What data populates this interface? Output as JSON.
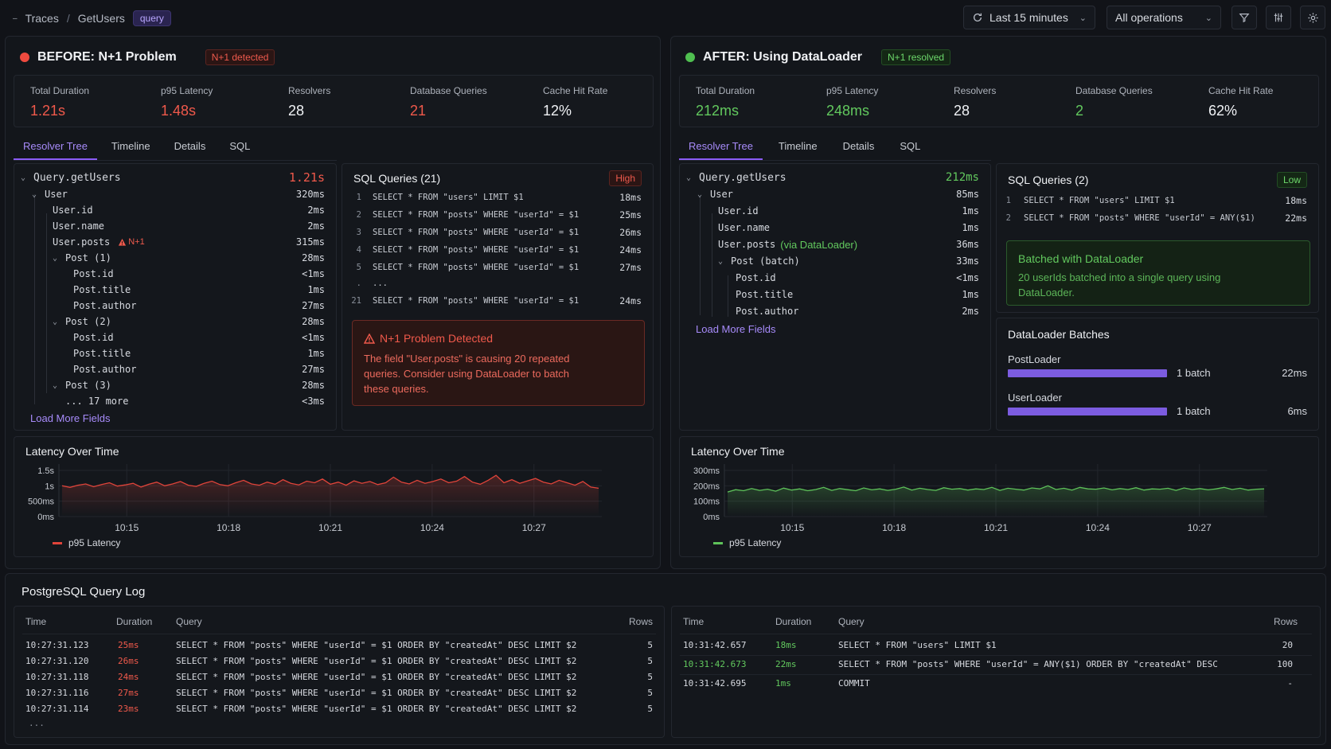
{
  "breadcrumb": {
    "root": "Traces",
    "sep": "/",
    "current": "GetUsers",
    "type_tag": "query"
  },
  "toolbar": {
    "time_range": "Last 15 minutes",
    "operations": "All operations"
  },
  "before": {
    "title": "BEFORE: N+1 Problem",
    "badge": "N+1 detected",
    "metrics": [
      {
        "label": "Total Duration",
        "value": "1.21s"
      },
      {
        "label": "p95 Latency",
        "value": "1.48s"
      },
      {
        "label": "Resolvers",
        "value": "28"
      },
      {
        "label": "Database Queries",
        "value": "21"
      },
      {
        "label": "Cache Hit Rate",
        "value": "12%"
      }
    ],
    "tabs": [
      "Resolver Tree",
      "Timeline",
      "Details",
      "SQL"
    ],
    "tree": [
      {
        "name": "Query.getUsers",
        "time": "1.21s"
      },
      {
        "name": "User",
        "time": "320ms"
      },
      {
        "name": "User.id",
        "time": "2ms"
      },
      {
        "name": "User.name",
        "time": "2ms"
      },
      {
        "name": "User.posts",
        "time": "315ms",
        "tag": "N+1"
      },
      {
        "name": "Post (1)",
        "time": "28ms"
      },
      {
        "name": "Post.id",
        "time": "<1ms"
      },
      {
        "name": "Post.title",
        "time": "1ms"
      },
      {
        "name": "Post.author",
        "time": "27ms"
      },
      {
        "name": "Post (2)",
        "time": "28ms"
      },
      {
        "name": "Post.id",
        "time": "<1ms"
      },
      {
        "name": "Post.title",
        "time": "1ms"
      },
      {
        "name": "Post.author",
        "time": "27ms"
      },
      {
        "name": "Post (3)",
        "time": "28ms"
      },
      {
        "name": "... 17 more",
        "time": "<3ms"
      }
    ],
    "load_more": "Load More Fields",
    "sql_title": "SQL Queries (21)",
    "sql_level": "High",
    "sql": [
      {
        "n": "1",
        "q": "SELECT * FROM \"users\" LIMIT $1",
        "d": "18ms"
      },
      {
        "n": "2",
        "q": "SELECT * FROM \"posts\" WHERE \"userId\" = $1",
        "d": "25ms"
      },
      {
        "n": "3",
        "q": "SELECT * FROM \"posts\" WHERE \"userId\" = $1",
        "d": "26ms"
      },
      {
        "n": "4",
        "q": "SELECT * FROM \"posts\" WHERE \"userId\" = $1",
        "d": "24ms"
      },
      {
        "n": "5",
        "q": "SELECT * FROM \"posts\" WHERE \"userId\" = $1",
        "d": "27ms"
      },
      {
        "n": ".",
        "q": "...",
        "d": ""
      },
      {
        "n": "21",
        "q": "SELECT * FROM \"posts\" WHERE \"userId\" = $1",
        "d": "24ms"
      }
    ],
    "alert_title": "N+1 Problem Detected",
    "alert_lines": [
      "The field \"User.posts\" is causing 20 repeated",
      "queries. Consider using DataLoader to batch",
      "these queries."
    ],
    "chart_title": "Latency Over Time",
    "legend": "p95 Latency"
  },
  "after": {
    "title": "AFTER: Using DataLoader",
    "badge": "N+1 resolved",
    "metrics": [
      {
        "label": "Total Duration",
        "value": "212ms"
      },
      {
        "label": "p95 Latency",
        "value": "248ms"
      },
      {
        "label": "Resolvers",
        "value": "28"
      },
      {
        "label": "Database Queries",
        "value": "2"
      },
      {
        "label": "Cache Hit Rate",
        "value": "62%"
      }
    ],
    "tabs": [
      "Resolver Tree",
      "Timeline",
      "Details",
      "SQL"
    ],
    "tree": [
      {
        "name": "Query.getUsers",
        "time": "212ms"
      },
      {
        "name": "User",
        "time": "85ms"
      },
      {
        "name": "User.id",
        "time": "1ms"
      },
      {
        "name": "User.name",
        "time": "1ms"
      },
      {
        "name": "User.posts",
        "time": "36ms",
        "tag": "(via DataLoader)"
      },
      {
        "name": "Post (batch)",
        "time": "33ms"
      },
      {
        "name": "Post.id",
        "time": "<1ms"
      },
      {
        "name": "Post.title",
        "time": "1ms"
      },
      {
        "name": "Post.author",
        "time": "2ms"
      }
    ],
    "load_more": "Load More Fields",
    "sql_title": "SQL Queries (2)",
    "sql_level": "Low",
    "sql": [
      {
        "n": "1",
        "q": "SELECT * FROM \"users\" LIMIT $1",
        "d": "18ms"
      },
      {
        "n": "2",
        "q": "SELECT * FROM \"posts\" WHERE \"userId\" = ANY($1)",
        "d": "22ms"
      }
    ],
    "alert_title": "Batched with DataLoader",
    "alert_lines": [
      "20 userIds batched into a single query using",
      "DataLoader."
    ],
    "batches_title": "DataLoader Batches",
    "batches": [
      {
        "name": "PostLoader",
        "label": "1 batch",
        "time": "22ms",
        "fill": 1.0
      },
      {
        "name": "UserLoader",
        "label": "1 batch",
        "time": "6ms",
        "fill": 1.0
      }
    ],
    "chart_title": "Latency Over Time",
    "legend": "p95 Latency"
  },
  "chart_data": [
    {
      "type": "line",
      "title": "Latency Over Time",
      "xlabel": "",
      "ylabel": "",
      "x_ticks": [
        "10:15",
        "10:18",
        "10:21",
        "10:24",
        "10:27"
      ],
      "y_ticks": [
        "0ms",
        "500ms",
        "1s",
        "1.5s"
      ],
      "ylim": [
        0,
        1.5
      ],
      "y_unit": "s",
      "x_range": [
        "10:13",
        "10:29"
      ],
      "series": [
        {
          "name": "p95 Latency",
          "color": "#e0443a",
          "values": [
            1.0,
            0.95,
            1.02,
            1.06,
            0.97,
            1.04,
            1.1,
            0.99,
            1.03,
            1.08,
            0.96,
            1.05,
            1.12,
            1.0,
            1.06,
            1.14,
            1.02,
            0.98,
            1.08,
            1.15,
            1.04,
            1.0,
            1.1,
            1.18,
            1.06,
            1.02,
            1.12,
            1.05,
            1.2,
            1.08,
            1.03,
            1.15,
            1.1,
            1.22,
            1.05,
            1.12,
            1.02,
            1.16,
            1.08,
            1.14,
            1.04,
            1.1,
            1.28,
            1.12,
            1.06,
            1.18,
            1.08,
            1.14,
            1.22,
            1.1,
            1.15,
            1.3,
            1.12,
            1.05,
            1.18,
            1.34,
            1.1,
            1.2,
            1.08,
            1.16,
            1.24,
            1.12,
            1.06,
            1.18,
            1.1,
            1.02,
            1.14,
            0.96,
            0.92
          ]
        }
      ],
      "grid": true,
      "legend": "bottom-left"
    },
    {
      "type": "line",
      "title": "Latency Over Time",
      "xlabel": "",
      "ylabel": "",
      "x_ticks": [
        "10:15",
        "10:18",
        "10:21",
        "10:24",
        "10:27"
      ],
      "y_ticks": [
        "0ms",
        "100ms",
        "200ms",
        "300ms"
      ],
      "ylim": [
        0,
        300
      ],
      "y_unit": "ms",
      "x_range": [
        "10:13",
        "10:29"
      ],
      "series": [
        {
          "name": "p95 Latency",
          "color": "#5ec25a",
          "values": [
            160,
            175,
            168,
            182,
            170,
            178,
            165,
            185,
            172,
            180,
            168,
            176,
            190,
            170,
            182,
            175,
            168,
            186,
            174,
            180,
            170,
            178,
            192,
            172,
            184,
            176,
            170,
            188,
            178,
            182,
            172,
            180,
            176,
            190,
            170,
            184,
            178,
            172,
            186,
            180,
            200,
            176,
            184,
            172,
            190,
            180,
            178,
            186,
            174,
            182,
            176,
            188,
            172,
            180,
            178,
            184,
            170,
            186,
            176,
            182,
            174,
            180,
            190,
            176,
            184,
            172,
            178,
            180
          ]
        }
      ],
      "grid": true,
      "legend": "bottom-left"
    }
  ],
  "log": {
    "title": "PostgreSQL Query Log",
    "headers": [
      "Time",
      "Duration",
      "Query",
      "Rows"
    ],
    "before_rows": [
      {
        "time": "10:27:31.123",
        "dur": "25ms",
        "query": "SELECT * FROM \"posts\" WHERE \"userId\" = $1 ORDER BY \"createdAt\" DESC LIMIT $2",
        "rows": "5"
      },
      {
        "time": "10:27:31.120",
        "dur": "26ms",
        "query": "SELECT * FROM \"posts\" WHERE \"userId\" = $1 ORDER BY \"createdAt\" DESC LIMIT $2",
        "rows": "5"
      },
      {
        "time": "10:27:31.118",
        "dur": "24ms",
        "query": "SELECT * FROM \"posts\" WHERE \"userId\" = $1 ORDER BY \"createdAt\" DESC LIMIT $2",
        "rows": "5"
      },
      {
        "time": "10:27:31.116",
        "dur": "27ms",
        "query": "SELECT * FROM \"posts\" WHERE \"userId\" = $1 ORDER BY \"createdAt\" DESC LIMIT $2",
        "rows": "5"
      },
      {
        "time": "10:27:31.114",
        "dur": "23ms",
        "query": "SELECT * FROM \"posts\" WHERE \"userId\" = $1 ORDER BY \"createdAt\" DESC LIMIT $2",
        "rows": "5"
      }
    ],
    "before_more": "...",
    "after_rows": [
      {
        "time": "10:31:42.657",
        "dur": "18ms",
        "query": "SELECT * FROM \"users\" LIMIT $1",
        "rows": "20"
      },
      {
        "time": "10:31:42.673",
        "dur": "22ms",
        "query": "SELECT * FROM \"posts\" WHERE \"userId\" = ANY($1) ORDER BY \"createdAt\" DESC",
        "rows": "100"
      },
      {
        "time": "10:31:42.695",
        "dur": "1ms",
        "query": "COMMIT",
        "rows": "-"
      }
    ]
  },
  "colors": {
    "accent": "#8b5cf6",
    "bad": "#f0594b",
    "good": "#62c95e",
    "bg": "#111318"
  }
}
